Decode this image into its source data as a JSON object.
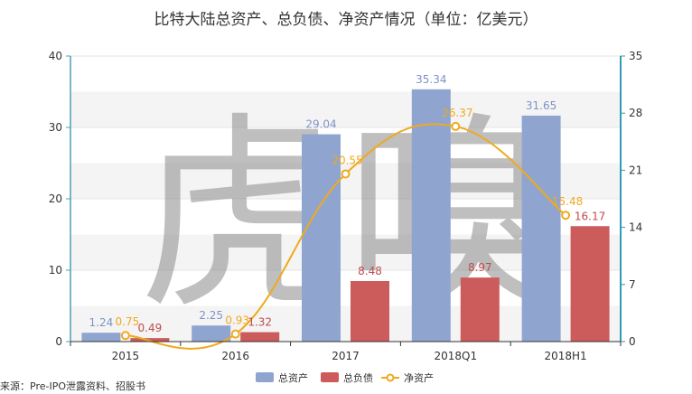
{
  "chart_data": {
    "type": "bar",
    "title": "比特大陆总资产、总负债、净资产情况（单位：亿美元）",
    "source_note": "来源：Pre-IPO泄露资料、招股书",
    "watermark": "虎嗅",
    "categories": [
      "2015",
      "2016",
      "2017",
      "2018Q1",
      "2018H1"
    ],
    "ylim_left": [
      0,
      40
    ],
    "yticks_left": [
      "0",
      "10",
      "20",
      "30",
      "40"
    ],
    "ylim_right": [
      0,
      35
    ],
    "yticks_right": [
      "0",
      "7",
      "14",
      "21",
      "28",
      "35"
    ],
    "grid": true,
    "legend_position": "bottom-center",
    "series": [
      {
        "name": "总资产",
        "type": "bar",
        "axis": "left",
        "color": "#8fa5d0",
        "values": [
          1.24,
          2.25,
          29.04,
          35.34,
          31.65
        ],
        "labels": [
          "1.24",
          "2.25",
          "29.04",
          "35.34",
          "31.65"
        ]
      },
      {
        "name": "总负债",
        "type": "bar",
        "axis": "left",
        "color": "#cc5b5b",
        "values": [
          0.49,
          1.32,
          8.48,
          8.97,
          16.17
        ],
        "labels": [
          "0.49",
          "1.32",
          "8.48",
          "8.97",
          "16.17"
        ]
      },
      {
        "name": "净资产",
        "type": "line",
        "axis": "right",
        "color": "#f0a91e",
        "values": [
          0.75,
          0.93,
          20.55,
          26.37,
          15.48
        ],
        "labels": [
          "0.75",
          "0.93",
          "20.55",
          "26.37",
          "15.48"
        ]
      }
    ]
  }
}
